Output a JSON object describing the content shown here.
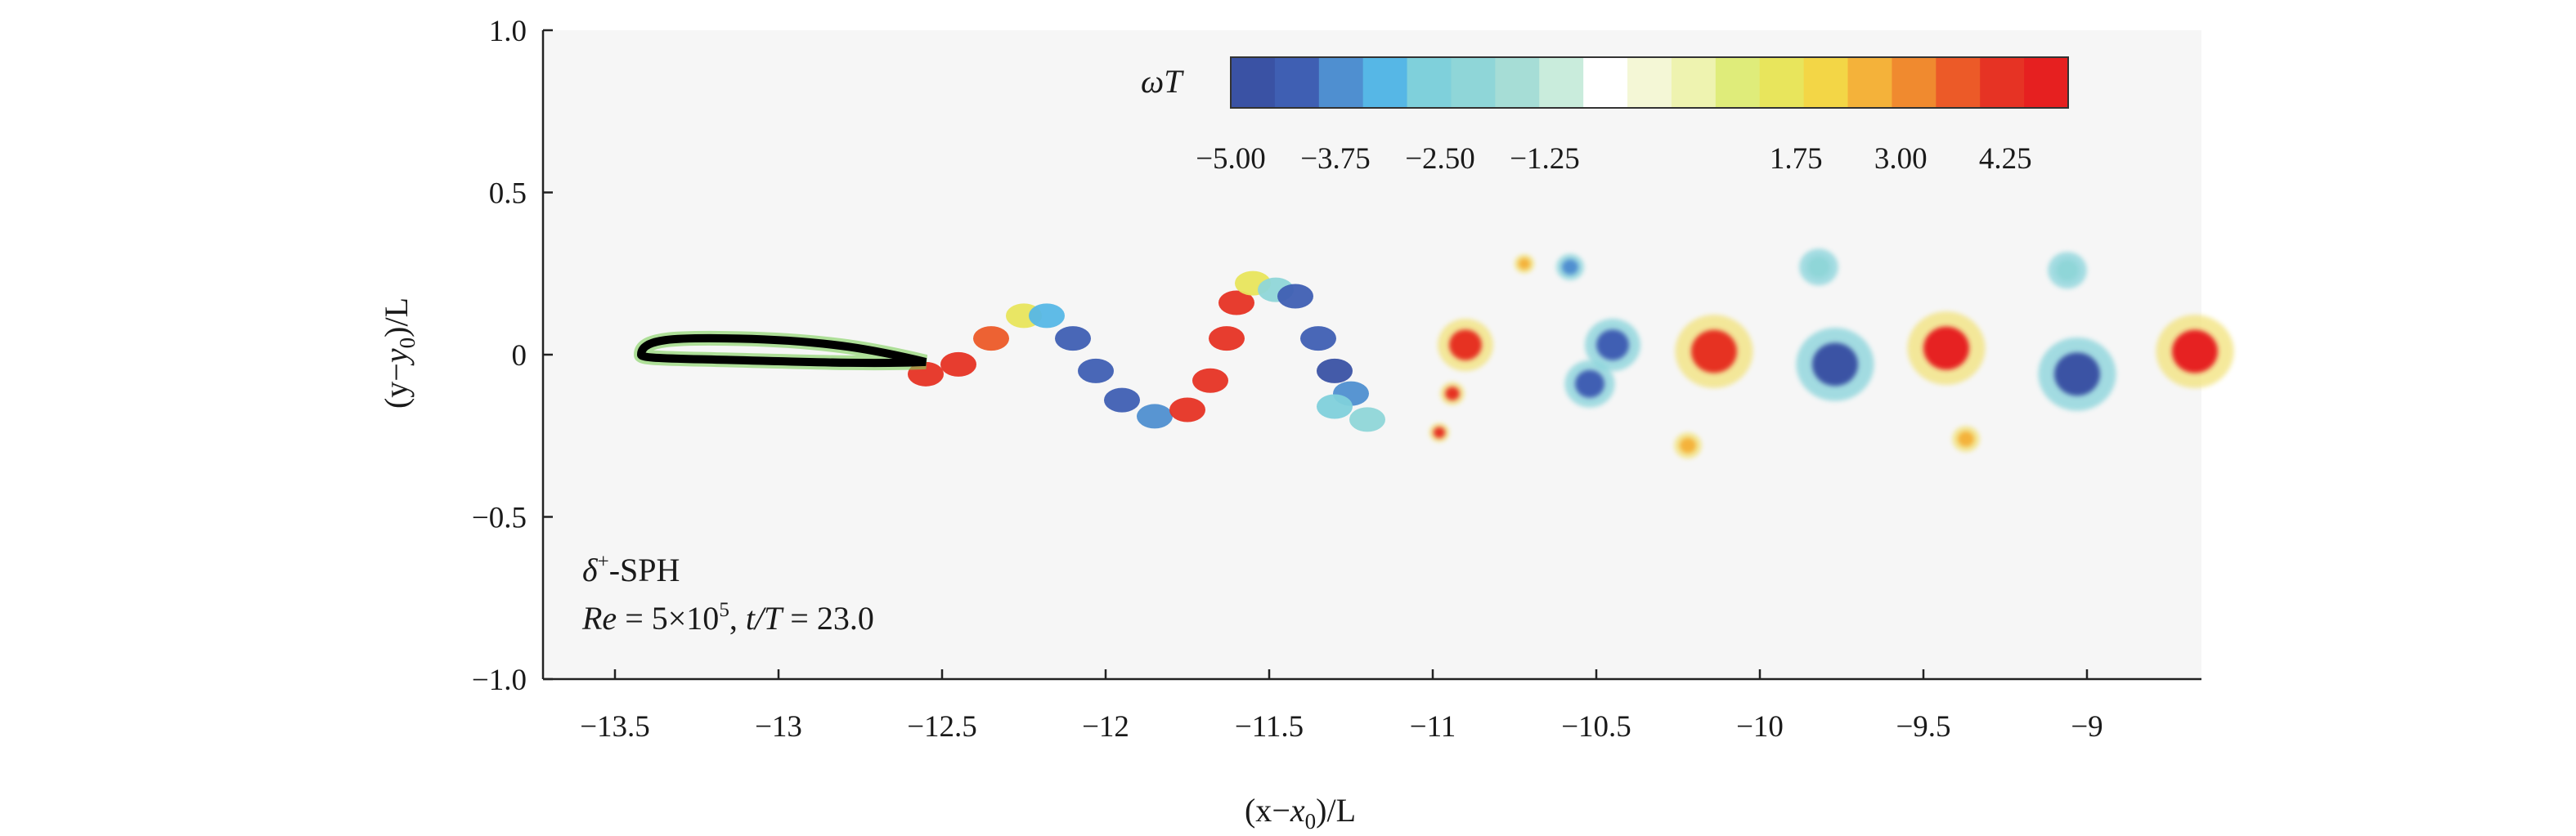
{
  "chart_data": {
    "type": "heatmap",
    "title": "",
    "xlabel": {
      "pre": "(x",
      "minus": "−",
      "var": "x",
      "sub": "0",
      "post": ")/L"
    },
    "ylabel": {
      "pre": "(y",
      "minus": "−",
      "var": "y",
      "sub": "0",
      "post": ")/L"
    },
    "xlim": [
      -13.72,
      -8.65
    ],
    "ylim": [
      -1.0,
      1.0
    ],
    "xticks": [
      -13.5,
      -13,
      -12.5,
      -12,
      -11.5,
      -11,
      -10.5,
      -10,
      -9.5,
      -9
    ],
    "xtick_labels": [
      "−13.5",
      "−13",
      "−12.5",
      "−12",
      "−11.5",
      "−11",
      "−10.5",
      "−10",
      "−9.5",
      "−9"
    ],
    "yticks": [
      1.0,
      0.5,
      0,
      -0.5,
      -1.0
    ],
    "ytick_labels": [
      "1.0",
      "0.5",
      "0",
      "−0.5",
      "−1.0"
    ],
    "grid": false,
    "colorbar": {
      "label_var": "ω",
      "label_t": "T",
      "range": [
        -5.0,
        5.0
      ],
      "tick_values": [
        -5.0,
        -3.75,
        -2.5,
        -1.25,
        1.75,
        3.0,
        4.25
      ],
      "tick_labels": [
        "−5.00",
        "−3.75",
        "−2.50",
        "−1.25",
        "1.75",
        "3.00",
        "4.25"
      ],
      "colors": [
        "#3a52a4",
        "#3f5fb3",
        "#4f8fd0",
        "#56b7e6",
        "#7fd0db",
        "#8fd6d8",
        "#a6ddd6",
        "#c9ecdc",
        "#ffffff",
        "#f4f7d6",
        "#eef3b0",
        "#dfec7a",
        "#e8e55c",
        "#f3d646",
        "#f4b23a",
        "#f08a2f",
        "#ec5a28",
        "#e63324",
        "#e62020"
      ],
      "placement": "top-right"
    },
    "annotation": {
      "method_pre": "δ",
      "method_sup": "+",
      "method_post": "-SPH",
      "re_var": "Re",
      "re_value": " = 5×10",
      "re_exp": "5",
      "time_sep": ", ",
      "time_var": "t/T",
      "time_value": " = 23.0"
    },
    "body": {
      "nose_x": -13.42,
      "tail_x": -12.55,
      "thickness": 0.09
    },
    "wake_vortices": [
      {
        "x": -10.45,
        "y": 0.03,
        "r": 0.05,
        "w": -4.6
      },
      {
        "x": -10.52,
        "y": -0.09,
        "r": 0.045,
        "w": -4.3
      },
      {
        "x": -10.58,
        "y": 0.27,
        "r": 0.025,
        "w": -4.0
      },
      {
        "x": -10.14,
        "y": 0.01,
        "r": 0.07,
        "w": 4.7
      },
      {
        "x": -10.22,
        "y": -0.28,
        "r": 0.025,
        "w": 2.5
      },
      {
        "x": -9.77,
        "y": -0.03,
        "r": 0.07,
        "w": -4.8
      },
      {
        "x": -9.82,
        "y": 0.27,
        "r": 0.035,
        "w": -2.0
      },
      {
        "x": -9.43,
        "y": 0.02,
        "r": 0.07,
        "w": 4.8
      },
      {
        "x": -9.37,
        "y": -0.26,
        "r": 0.025,
        "w": 2.5
      },
      {
        "x": -9.03,
        "y": -0.06,
        "r": 0.07,
        "w": -4.8
      },
      {
        "x": -9.06,
        "y": 0.26,
        "r": 0.035,
        "w": -2.2
      },
      {
        "x": -8.67,
        "y": 0.01,
        "r": 0.07,
        "w": 4.8
      },
      {
        "x": -10.9,
        "y": 0.03,
        "r": 0.05,
        "w": 4.7
      },
      {
        "x": -10.72,
        "y": 0.28,
        "r": 0.018,
        "w": 3.0
      },
      {
        "x": -10.94,
        "y": -0.12,
        "r": 0.022,
        "w": 4.5
      },
      {
        "x": -10.98,
        "y": -0.24,
        "r": 0.018,
        "w": 4.4
      }
    ],
    "shear_layer": [
      {
        "x": -12.55,
        "y": -0.06,
        "w": 4.6
      },
      {
        "x": -12.45,
        "y": -0.03,
        "w": 4.5
      },
      {
        "x": -12.35,
        "y": 0.05,
        "w": 4.0
      },
      {
        "x": -12.25,
        "y": 0.12,
        "w": 1.5
      },
      {
        "x": -12.18,
        "y": 0.12,
        "w": -3.5
      },
      {
        "x": -12.1,
        "y": 0.05,
        "w": -4.5
      },
      {
        "x": -12.03,
        "y": -0.05,
        "w": -4.7
      },
      {
        "x": -11.95,
        "y": -0.14,
        "w": -4.5
      },
      {
        "x": -11.85,
        "y": -0.19,
        "w": -3.8
      },
      {
        "x": -11.75,
        "y": -0.17,
        "w": 4.3
      },
      {
        "x": -11.68,
        "y": -0.08,
        "w": 4.7
      },
      {
        "x": -11.63,
        "y": 0.05,
        "w": 4.6
      },
      {
        "x": -11.6,
        "y": 0.16,
        "w": 4.5
      },
      {
        "x": -11.55,
        "y": 0.22,
        "w": 1.5
      },
      {
        "x": -11.48,
        "y": 0.2,
        "w": -2.2
      },
      {
        "x": -11.42,
        "y": 0.18,
        "w": -4.2
      },
      {
        "x": -11.35,
        "y": 0.05,
        "w": -4.6
      },
      {
        "x": -11.3,
        "y": -0.05,
        "w": -4.8
      },
      {
        "x": -11.25,
        "y": -0.12,
        "w": -4.0
      },
      {
        "x": -11.2,
        "y": -0.2,
        "w": -2.5
      },
      {
        "x": -11.3,
        "y": -0.16,
        "w": -3.0
      }
    ]
  }
}
